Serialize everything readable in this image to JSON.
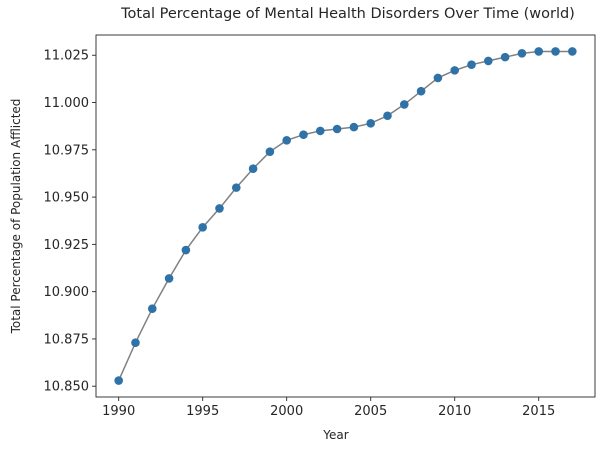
{
  "chart_data": {
    "type": "line",
    "title": "Total Percentage of Mental Health Disorders Over Time (world)",
    "xlabel": "Year",
    "ylabel": "Total Percentage of Population Afflicted",
    "x": [
      1990,
      1991,
      1992,
      1993,
      1994,
      1995,
      1996,
      1997,
      1998,
      1999,
      2000,
      2001,
      2002,
      2003,
      2004,
      2005,
      2006,
      2007,
      2008,
      2009,
      2010,
      2011,
      2012,
      2013,
      2014,
      2015,
      2016,
      2017
    ],
    "series": [
      {
        "values": [
          10.853,
          10.873,
          10.891,
          10.907,
          10.922,
          10.934,
          10.944,
          10.955,
          10.965,
          10.974,
          10.98,
          10.983,
          10.985,
          10.986,
          10.987,
          10.989,
          10.993,
          10.999,
          11.006,
          11.013,
          11.017,
          11.02,
          11.022,
          11.024,
          11.026,
          11.027,
          11.027,
          11.027
        ]
      }
    ],
    "xlim": [
      1988.65,
      2018.35
    ],
    "ylim": [
      10.8443,
      11.0357
    ],
    "xticks": [
      1990,
      1995,
      2000,
      2005,
      2010,
      2015
    ],
    "yticks": [
      "10.850",
      "10.875",
      "10.900",
      "10.925",
      "10.950",
      "10.975",
      "11.000",
      "11.025"
    ],
    "grid": false,
    "line_color": "#808080",
    "marker_color": "#2e72a8"
  }
}
